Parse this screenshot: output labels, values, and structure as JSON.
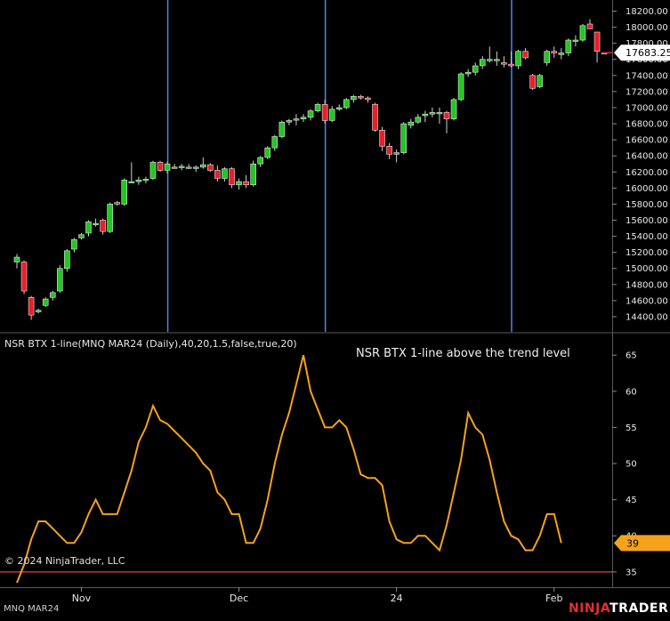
{
  "chart_data": [
    {
      "type": "candlestick",
      "instrument": "MNQ MAR24",
      "y_ticks": [
        "18200.00",
        "18000.00",
        "17800.00",
        "17600.00",
        "17400.00",
        "17200.00",
        "17000.00",
        "16800.00",
        "16600.00",
        "16400.00",
        "16200.00",
        "16000.00",
        "15800.00",
        "15600.00",
        "15400.00",
        "15200.00",
        "15000.00",
        "14800.00",
        "14600.00",
        "14400.00"
      ],
      "ylim": [
        14300,
        18250
      ],
      "last_price": "17683.25",
      "colors": {
        "up": "#22c622",
        "down": "#e8202a",
        "vline": "#4a86e8",
        "last_price_bg": "#ffffff"
      },
      "session_markers_x_index": [
        21,
        43,
        69
      ],
      "candles": [
        {
          "o": 15080,
          "h": 15180,
          "l": 15000,
          "c": 15140
        },
        {
          "o": 15080,
          "h": 15100,
          "l": 14680,
          "c": 14720
        },
        {
          "o": 14640,
          "h": 14660,
          "l": 14360,
          "c": 14420
        },
        {
          "o": 14460,
          "h": 14500,
          "l": 14440,
          "c": 14480
        },
        {
          "o": 14540,
          "h": 14640,
          "l": 14520,
          "c": 14620
        },
        {
          "o": 14640,
          "h": 14720,
          "l": 14600,
          "c": 14700
        },
        {
          "o": 14720,
          "h": 15040,
          "l": 14700,
          "c": 15000
        },
        {
          "o": 15000,
          "h": 15240,
          "l": 14960,
          "c": 15220
        },
        {
          "o": 15240,
          "h": 15380,
          "l": 15200,
          "c": 15360
        },
        {
          "o": 15380,
          "h": 15440,
          "l": 15360,
          "c": 15420
        },
        {
          "o": 15440,
          "h": 15600,
          "l": 15400,
          "c": 15580
        },
        {
          "o": 15560,
          "h": 15620,
          "l": 15520,
          "c": 15560
        },
        {
          "o": 15600,
          "h": 15620,
          "l": 15420,
          "c": 15460
        },
        {
          "o": 15460,
          "h": 15820,
          "l": 15440,
          "c": 15800
        },
        {
          "o": 15820,
          "h": 15840,
          "l": 15780,
          "c": 15800
        },
        {
          "o": 15800,
          "h": 16120,
          "l": 15780,
          "c": 16100
        },
        {
          "o": 16080,
          "h": 16320,
          "l": 16060,
          "c": 16080
        },
        {
          "o": 16080,
          "h": 16140,
          "l": 16040,
          "c": 16100
        },
        {
          "o": 16100,
          "h": 16140,
          "l": 16060,
          "c": 16110
        },
        {
          "o": 16120,
          "h": 16340,
          "l": 16100,
          "c": 16320
        },
        {
          "o": 16320,
          "h": 16340,
          "l": 16200,
          "c": 16220
        },
        {
          "o": 16220,
          "h": 16330,
          "l": 16180,
          "c": 16300
        },
        {
          "o": 16260,
          "h": 16300,
          "l": 16240,
          "c": 16260
        },
        {
          "o": 16260,
          "h": 16300,
          "l": 16220,
          "c": 16270
        },
        {
          "o": 16260,
          "h": 16300,
          "l": 16240,
          "c": 16260
        },
        {
          "o": 16250,
          "h": 16280,
          "l": 16200,
          "c": 16260
        },
        {
          "o": 16260,
          "h": 16380,
          "l": 16240,
          "c": 16290
        },
        {
          "o": 16290,
          "h": 16310,
          "l": 16200,
          "c": 16220
        },
        {
          "o": 16220,
          "h": 16280,
          "l": 16080,
          "c": 16120
        },
        {
          "o": 16120,
          "h": 16260,
          "l": 16080,
          "c": 16240
        },
        {
          "o": 16240,
          "h": 16260,
          "l": 16000,
          "c": 16040
        },
        {
          "o": 16040,
          "h": 16120,
          "l": 15980,
          "c": 16080
        },
        {
          "o": 16080,
          "h": 16160,
          "l": 16000,
          "c": 16040
        },
        {
          "o": 16040,
          "h": 16340,
          "l": 16020,
          "c": 16300
        },
        {
          "o": 16300,
          "h": 16400,
          "l": 16260,
          "c": 16380
        },
        {
          "o": 16380,
          "h": 16520,
          "l": 16360,
          "c": 16500
        },
        {
          "o": 16500,
          "h": 16660,
          "l": 16460,
          "c": 16640
        },
        {
          "o": 16640,
          "h": 16840,
          "l": 16620,
          "c": 16820
        },
        {
          "o": 16820,
          "h": 16860,
          "l": 16780,
          "c": 16840
        },
        {
          "o": 16860,
          "h": 16920,
          "l": 16780,
          "c": 16860
        },
        {
          "o": 16860,
          "h": 16920,
          "l": 16820,
          "c": 16880
        },
        {
          "o": 16880,
          "h": 16980,
          "l": 16840,
          "c": 16960
        },
        {
          "o": 16960,
          "h": 17060,
          "l": 16940,
          "c": 17040
        },
        {
          "o": 17040,
          "h": 17100,
          "l": 16800,
          "c": 16840
        },
        {
          "o": 16840,
          "h": 17020,
          "l": 16820,
          "c": 16980
        },
        {
          "o": 16980,
          "h": 17040,
          "l": 16960,
          "c": 17000
        },
        {
          "o": 17000,
          "h": 17120,
          "l": 16980,
          "c": 17100
        },
        {
          "o": 17100,
          "h": 17160,
          "l": 17060,
          "c": 17140
        },
        {
          "o": 17140,
          "h": 17160,
          "l": 17100,
          "c": 17120
        },
        {
          "o": 17120,
          "h": 17140,
          "l": 17060,
          "c": 17100
        },
        {
          "o": 17040,
          "h": 17060,
          "l": 16700,
          "c": 16720
        },
        {
          "o": 16720,
          "h": 16760,
          "l": 16460,
          "c": 16520
        },
        {
          "o": 16520,
          "h": 16560,
          "l": 16360,
          "c": 16420
        },
        {
          "o": 16420,
          "h": 16480,
          "l": 16320,
          "c": 16440
        },
        {
          "o": 16440,
          "h": 16820,
          "l": 16420,
          "c": 16800
        },
        {
          "o": 16780,
          "h": 16860,
          "l": 16740,
          "c": 16820
        },
        {
          "o": 16820,
          "h": 16920,
          "l": 16800,
          "c": 16880
        },
        {
          "o": 16900,
          "h": 16960,
          "l": 16820,
          "c": 16920
        },
        {
          "o": 16920,
          "h": 17000,
          "l": 16880,
          "c": 16940
        },
        {
          "o": 16940,
          "h": 17000,
          "l": 16800,
          "c": 16940
        },
        {
          "o": 16940,
          "h": 16960,
          "l": 16680,
          "c": 16860
        },
        {
          "o": 16860,
          "h": 17120,
          "l": 16840,
          "c": 17100
        },
        {
          "o": 17100,
          "h": 17440,
          "l": 17080,
          "c": 17420
        },
        {
          "o": 17420,
          "h": 17480,
          "l": 17380,
          "c": 17440
        },
        {
          "o": 17440,
          "h": 17560,
          "l": 17400,
          "c": 17520
        },
        {
          "o": 17520,
          "h": 17640,
          "l": 17480,
          "c": 17600
        },
        {
          "o": 17600,
          "h": 17760,
          "l": 17560,
          "c": 17600
        },
        {
          "o": 17600,
          "h": 17700,
          "l": 17520,
          "c": 17600
        },
        {
          "o": 17560,
          "h": 17640,
          "l": 17500,
          "c": 17540
        },
        {
          "o": 17540,
          "h": 17700,
          "l": 17500,
          "c": 17520
        },
        {
          "o": 17520,
          "h": 17720,
          "l": 17480,
          "c": 17700
        },
        {
          "o": 17700,
          "h": 17740,
          "l": 17600,
          "c": 17620
        },
        {
          "o": 17400,
          "h": 17420,
          "l": 17220,
          "c": 17240
        },
        {
          "o": 17260,
          "h": 17420,
          "l": 17240,
          "c": 17400
        },
        {
          "o": 17560,
          "h": 17720,
          "l": 17520,
          "c": 17700
        },
        {
          "o": 17700,
          "h": 17760,
          "l": 17620,
          "c": 17680
        },
        {
          "o": 17660,
          "h": 17740,
          "l": 17600,
          "c": 17680
        },
        {
          "o": 17680,
          "h": 17860,
          "l": 17640,
          "c": 17840
        },
        {
          "o": 17840,
          "h": 17900,
          "l": 17760,
          "c": 17840
        },
        {
          "o": 17840,
          "h": 18040,
          "l": 17820,
          "c": 18020
        },
        {
          "o": 18040,
          "h": 18100,
          "l": 17980,
          "c": 17980
        },
        {
          "o": 17940,
          "h": 17940,
          "l": 17560,
          "c": 17700
        },
        {
          "o": 17683,
          "h": 17690,
          "l": 17676,
          "c": 17683
        }
      ]
    },
    {
      "type": "line",
      "title": "NSR BTX 1-line(MNQ MAR24 (Daily),40,20,1.5,false,true,20)",
      "annotation": "NSR BTX 1-line above the trend level",
      "y_ticks": [
        "65",
        "60",
        "55",
        "50",
        "45",
        "40",
        "35"
      ],
      "ylim": [
        33.5,
        67
      ],
      "trend_level": 35,
      "last_value": "39",
      "x_labels": [
        {
          "i": 9,
          "label": "Nov"
        },
        {
          "i": 31,
          "label": "Dec"
        },
        {
          "i": 53,
          "label": "24"
        },
        {
          "i": 75,
          "label": "Feb"
        }
      ],
      "colors": {
        "line": "#f5a21c",
        "trend": "#c0392b"
      },
      "values": [
        33.5,
        36,
        39.5,
        42,
        42,
        41,
        40,
        39,
        39,
        40.5,
        43,
        45,
        43,
        43,
        43,
        46,
        49,
        53,
        55,
        58,
        56,
        55.5,
        54.5,
        53.5,
        52.5,
        51.5,
        50,
        49,
        46,
        45,
        43,
        43,
        39,
        39,
        41,
        45,
        50,
        54,
        57,
        61,
        65,
        60,
        57.5,
        55,
        55,
        56,
        55,
        52,
        48.5,
        48,
        48,
        47,
        42,
        39.5,
        39,
        39,
        40,
        40,
        39,
        38,
        41.5,
        46,
        50.5,
        57,
        55,
        54,
        50.5,
        46,
        42,
        40,
        39.5,
        38,
        38,
        40,
        43,
        43,
        39
      ]
    }
  ],
  "copyright": "© 2024 NinjaTrader, LLC",
  "instrument_label": "MNQ MAR24",
  "brand": {
    "left": "NINJA",
    "right": "TRADER"
  }
}
